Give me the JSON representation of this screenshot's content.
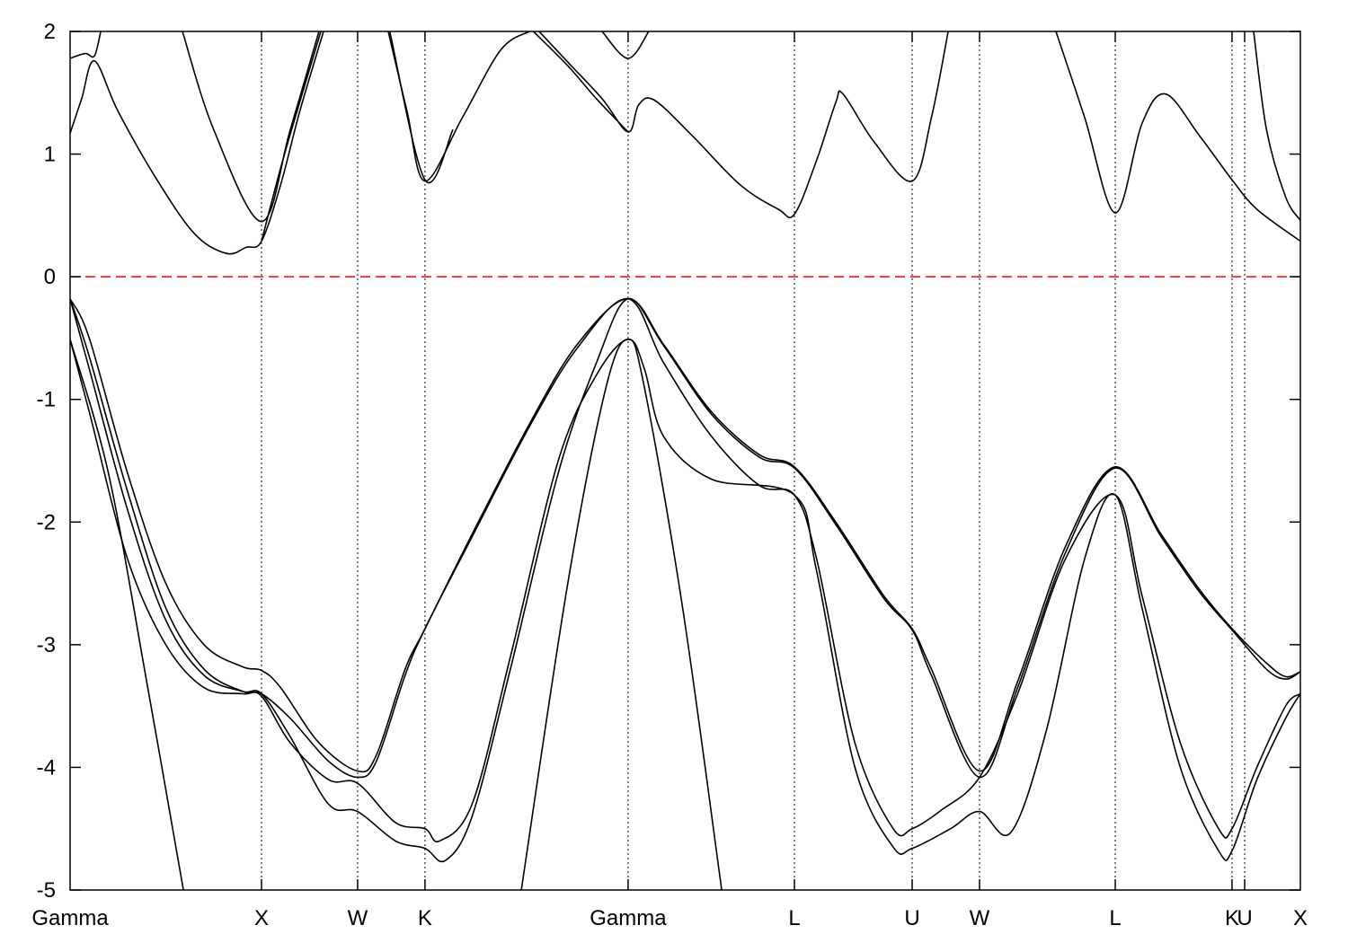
{
  "chart_data": {
    "type": "line",
    "title": "",
    "xlabel": "",
    "ylabel": "",
    "ylim": [
      -5,
      2
    ],
    "yticks": [
      "-5",
      "-4",
      "-3",
      "-2",
      "-1",
      "0",
      "1",
      "2"
    ],
    "grid": false,
    "legend": "none",
    "fermi_level": {
      "value": 0,
      "color": "#ff0000",
      "style": "dashed"
    },
    "band_color": "#000000",
    "high_symmetry_points": [
      {
        "label": "Gamma",
        "k": 0
      },
      {
        "label": "X",
        "k": 1.0
      },
      {
        "label": "W",
        "k": 1.502
      },
      {
        "label": "K",
        "k": 1.854
      },
      {
        "label": "Gamma",
        "k": 2.915
      },
      {
        "label": "L",
        "k": 3.784
      },
      {
        "label": "U",
        "k": 4.399
      },
      {
        "label": "W",
        "k": 4.751
      },
      {
        "label": "L",
        "k": 5.46
      },
      {
        "label": "K",
        "k": 6.07
      },
      {
        "label": "U",
        "k": 6.136
      },
      {
        "label": "X",
        "k": 6.427
      }
    ],
    "series": [
      {
        "values": [
          [
            0,
            1.17
          ],
          [
            0.06,
            1.45
          ],
          [
            0.127,
            1.76
          ],
          [
            0.25,
            1.35
          ],
          [
            0.45,
            0.8
          ],
          [
            0.65,
            0.35
          ],
          [
            0.817,
            0.19
          ],
          [
            0.92,
            0.24
          ],
          [
            1.0,
            0.29
          ],
          [
            1.1,
            0.75
          ],
          [
            1.2,
            1.35
          ],
          [
            1.324,
            2.0
          ]
        ]
      },
      {
        "values": [
          [
            1.662,
            2.0
          ],
          [
            1.76,
            1.35
          ],
          [
            1.854,
            0.78
          ],
          [
            2.05,
            1.3
          ],
          [
            2.25,
            1.85
          ],
          [
            2.4,
            2.0
          ]
        ]
      },
      {
        "values": [
          [
            2.45,
            2.0
          ],
          [
            2.6,
            1.75
          ],
          [
            2.78,
            1.45
          ],
          [
            2.915,
            1.18
          ],
          [
            2.97,
            1.4
          ],
          [
            3.052,
            1.44
          ],
          [
            3.25,
            1.15
          ],
          [
            3.5,
            0.75
          ],
          [
            3.7,
            0.55
          ],
          [
            3.784,
            0.51
          ],
          [
            3.9,
            0.95
          ],
          [
            4.0,
            1.42
          ],
          [
            4.038,
            1.49
          ],
          [
            4.2,
            1.1
          ],
          [
            4.399,
            0.78
          ],
          [
            4.5,
            1.3
          ],
          [
            4.587,
            2.0
          ]
        ]
      },
      {
        "values": [
          [
            5.15,
            2.0
          ],
          [
            5.3,
            1.3
          ],
          [
            5.46,
            0.52
          ],
          [
            5.6,
            1.25
          ],
          [
            5.723,
            1.49
          ],
          [
            5.9,
            1.15
          ],
          [
            6.07,
            0.79
          ],
          [
            6.2,
            0.55
          ],
          [
            6.427,
            0.29
          ]
        ]
      },
      {
        "values": [
          [
            0,
            1.78
          ],
          [
            0.08,
            1.82
          ],
          [
            0.127,
            1.8
          ],
          [
            0.16,
            2.0
          ]
        ]
      },
      {
        "values": [
          [
            0.587,
            2.0
          ],
          [
            0.75,
            1.2
          ],
          [
            1.0,
            0.45
          ],
          [
            1.15,
            1.2
          ],
          [
            1.3,
            2.0
          ]
        ]
      },
      {
        "values": [
          [
            1.0,
            0.29
          ],
          [
            1.12,
            1.0
          ],
          [
            1.31,
            2.0
          ]
        ]
      },
      {
        "values": [
          [
            1.67,
            2.0
          ],
          [
            1.854,
            0.79
          ],
          [
            2.0,
            1.2
          ]
        ]
      },
      {
        "values": [
          [
            2.779,
            2.0
          ],
          [
            2.915,
            1.78
          ],
          [
            3.023,
            2.0
          ]
        ]
      },
      {
        "values": [
          [
            2.42,
            2.0
          ],
          [
            2.6,
            1.72
          ],
          [
            2.75,
            1.45
          ],
          [
            2.915,
            1.18
          ]
        ]
      },
      {
        "values": [
          [
            6.183,
            2.0
          ],
          [
            6.25,
            1.2
          ],
          [
            6.35,
            0.65
          ],
          [
            6.427,
            0.46
          ]
        ]
      },
      {
        "values": [
          [
            0,
            -0.18
          ],
          [
            0.1,
            -0.5
          ],
          [
            0.3,
            -1.6
          ],
          [
            0.5,
            -2.5
          ],
          [
            0.7,
            -3.0
          ],
          [
            0.9,
            -3.18
          ],
          [
            1.0,
            -3.21
          ],
          [
            1.1,
            -3.35
          ],
          [
            1.3,
            -3.8
          ],
          [
            1.502,
            -4.03
          ],
          [
            1.6,
            -3.9
          ],
          [
            1.75,
            -3.2
          ],
          [
            1.854,
            -2.87
          ],
          [
            2.1,
            -2.1
          ],
          [
            2.4,
            -1.2
          ],
          [
            2.65,
            -0.55
          ],
          [
            2.915,
            -0.18
          ],
          [
            3.1,
            -0.55
          ],
          [
            3.35,
            -1.1
          ],
          [
            3.6,
            -1.45
          ],
          [
            3.784,
            -1.55
          ],
          [
            4.0,
            -2.0
          ],
          [
            4.25,
            -2.6
          ],
          [
            4.399,
            -2.87
          ],
          [
            4.5,
            -3.2
          ],
          [
            4.751,
            -4.03
          ],
          [
            4.95,
            -3.3
          ],
          [
            5.2,
            -2.2
          ],
          [
            5.46,
            -1.55
          ],
          [
            5.7,
            -2.1
          ],
          [
            5.9,
            -2.55
          ],
          [
            6.07,
            -2.87
          ],
          [
            6.25,
            -3.15
          ],
          [
            6.35,
            -3.26
          ],
          [
            6.427,
            -3.22
          ]
        ]
      },
      {
        "values": [
          [
            0,
            -0.18
          ],
          [
            0.1,
            -0.65
          ],
          [
            0.3,
            -1.75
          ],
          [
            0.5,
            -2.7
          ],
          [
            0.7,
            -3.2
          ],
          [
            0.9,
            -3.38
          ],
          [
            1.0,
            -3.4
          ],
          [
            1.15,
            -3.6
          ],
          [
            1.35,
            -3.95
          ],
          [
            1.502,
            -4.08
          ],
          [
            1.6,
            -3.95
          ],
          [
            1.75,
            -3.25
          ],
          [
            1.854,
            -2.87
          ],
          [
            2.1,
            -2.12
          ],
          [
            2.4,
            -1.22
          ],
          [
            2.65,
            -0.58
          ],
          [
            2.915,
            -0.18
          ],
          [
            3.1,
            -0.7
          ],
          [
            3.35,
            -1.3
          ],
          [
            3.6,
            -1.7
          ],
          [
            3.784,
            -1.78
          ],
          [
            3.9,
            -2.3
          ],
          [
            4.1,
            -3.8
          ],
          [
            4.3,
            -4.5
          ],
          [
            4.399,
            -4.5
          ],
          [
            4.55,
            -4.35
          ],
          [
            4.751,
            -4.08
          ],
          [
            4.95,
            -3.4
          ],
          [
            5.2,
            -2.3
          ],
          [
            5.46,
            -1.78
          ],
          [
            5.6,
            -2.6
          ],
          [
            5.8,
            -3.8
          ],
          [
            6.0,
            -4.5
          ],
          [
            6.07,
            -4.5
          ],
          [
            6.2,
            -4.0
          ],
          [
            6.35,
            -3.5
          ],
          [
            6.427,
            -3.4
          ]
        ]
      },
      {
        "values": [
          [
            0,
            -0.18
          ],
          [
            0.1,
            -0.75
          ],
          [
            0.3,
            -1.9
          ],
          [
            0.5,
            -2.8
          ],
          [
            0.7,
            -3.25
          ],
          [
            0.9,
            -3.38
          ],
          [
            1.0,
            -3.4
          ],
          [
            1.15,
            -3.75
          ],
          [
            1.35,
            -4.3
          ],
          [
            1.502,
            -4.36
          ],
          [
            1.7,
            -4.6
          ],
          [
            1.854,
            -4.66
          ],
          [
            1.96,
            -4.76
          ],
          [
            2.1,
            -4.4
          ],
          [
            2.3,
            -3.2
          ],
          [
            2.55,
            -1.6
          ],
          [
            2.75,
            -0.7
          ],
          [
            2.915,
            -0.18
          ],
          [
            3.1,
            -0.56
          ],
          [
            3.35,
            -1.12
          ],
          [
            3.6,
            -1.47
          ],
          [
            3.784,
            -1.56
          ],
          [
            4.0,
            -2.02
          ],
          [
            4.25,
            -2.62
          ],
          [
            4.399,
            -2.88
          ],
          [
            4.5,
            -3.25
          ],
          [
            4.751,
            -4.08
          ],
          [
            4.95,
            -3.35
          ],
          [
            5.2,
            -2.25
          ],
          [
            5.46,
            -1.56
          ],
          [
            5.7,
            -2.12
          ],
          [
            5.9,
            -2.57
          ],
          [
            6.07,
            -2.88
          ],
          [
            6.25,
            -3.2
          ],
          [
            6.35,
            -3.28
          ],
          [
            6.427,
            -3.22
          ]
        ]
      },
      {
        "values": [
          [
            0,
            -0.51
          ],
          [
            0.1,
            -1.1
          ],
          [
            0.3,
            -2.3
          ],
          [
            0.5,
            -3.0
          ],
          [
            0.7,
            -3.35
          ],
          [
            0.9,
            -3.4
          ],
          [
            1.0,
            -3.42
          ],
          [
            1.15,
            -3.8
          ],
          [
            1.35,
            -4.1
          ],
          [
            1.502,
            -4.13
          ],
          [
            1.7,
            -4.45
          ],
          [
            1.854,
            -4.5
          ],
          [
            1.93,
            -4.6
          ],
          [
            2.1,
            -4.3
          ],
          [
            2.3,
            -3.1
          ],
          [
            2.55,
            -1.5
          ],
          [
            2.75,
            -0.8
          ],
          [
            2.915,
            -0.51
          ],
          [
            3.0,
            -0.75
          ],
          [
            3.1,
            -1.3
          ],
          [
            3.35,
            -1.65
          ],
          [
            3.784,
            -1.78
          ],
          [
            3.9,
            -2.4
          ],
          [
            4.1,
            -4.0
          ],
          [
            4.3,
            -4.65
          ],
          [
            4.399,
            -4.66
          ],
          [
            4.6,
            -4.5
          ],
          [
            4.751,
            -4.36
          ],
          [
            4.915,
            -4.53
          ],
          [
            5.1,
            -3.7
          ],
          [
            5.3,
            -2.3
          ],
          [
            5.46,
            -1.78
          ],
          [
            5.6,
            -2.7
          ],
          [
            5.8,
            -4.0
          ],
          [
            6.0,
            -4.68
          ],
          [
            6.07,
            -4.68
          ],
          [
            6.2,
            -4.1
          ],
          [
            6.35,
            -3.6
          ],
          [
            6.427,
            -3.4
          ]
        ]
      },
      {
        "values": [
          [
            0,
            -0.51
          ],
          [
            0.2,
            -1.6
          ],
          [
            0.4,
            -3.3
          ],
          [
            0.592,
            -5.0
          ]
        ]
      },
      {
        "values": [
          [
            2.357,
            -5.0
          ],
          [
            2.6,
            -2.5
          ],
          [
            2.8,
            -0.9
          ],
          [
            2.915,
            -0.51
          ],
          [
            3.0,
            -0.9
          ],
          [
            3.2,
            -2.7
          ],
          [
            3.404,
            -5.0
          ]
        ]
      }
    ]
  }
}
